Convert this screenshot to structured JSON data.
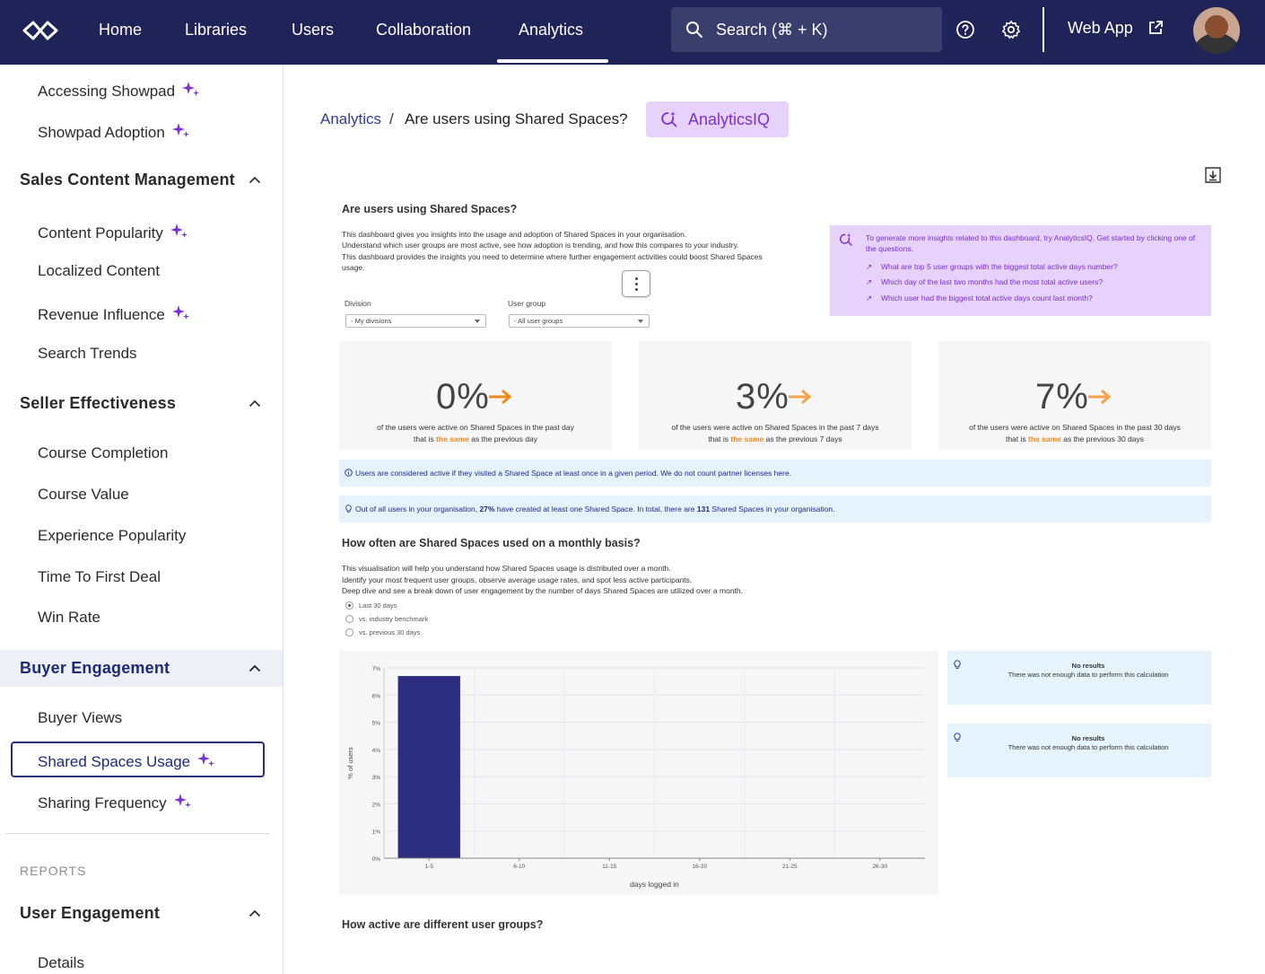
{
  "nav": {
    "items": [
      "Home",
      "Libraries",
      "Users",
      "Collaboration",
      "Analytics"
    ],
    "active": "Analytics",
    "search_placeholder": "Search (⌘ + K)",
    "web_app_label": "Web App",
    "icons": [
      "infinity-logo-icon",
      "search-icon",
      "help-icon",
      "gear-icon",
      "external-link-icon"
    ]
  },
  "sidebar": {
    "top_items": [
      {
        "label": "Accessing Showpad",
        "sparkle": true
      },
      {
        "label": "Showpad Adoption",
        "sparkle": true
      }
    ],
    "sections": [
      {
        "title": "Sales Content Management",
        "items": [
          {
            "label": "Content Popularity",
            "sparkle": true
          },
          {
            "label": "Localized Content",
            "sparkle": false
          },
          {
            "label": "Revenue Influence",
            "sparkle": true
          },
          {
            "label": "Search Trends",
            "sparkle": false
          }
        ]
      },
      {
        "title": "Seller Effectiveness",
        "items": [
          {
            "label": "Course Completion",
            "sparkle": false
          },
          {
            "label": "Course Value",
            "sparkle": false
          },
          {
            "label": "Experience Popularity",
            "sparkle": false
          },
          {
            "label": "Time To First Deal",
            "sparkle": false
          },
          {
            "label": "Win Rate",
            "sparkle": false
          }
        ]
      },
      {
        "title": "Buyer Engagement",
        "active": true,
        "items": [
          {
            "label": "Buyer Views",
            "sparkle": false
          },
          {
            "label": "Shared Spaces Usage",
            "sparkle": true,
            "selected": true
          },
          {
            "label": "Sharing Frequency",
            "sparkle": true
          }
        ]
      }
    ],
    "reports_heading": "REPORTS",
    "reports_sections": [
      {
        "title": "User Engagement",
        "items": [
          {
            "label": "Details",
            "sparkle": false
          }
        ]
      }
    ]
  },
  "breadcrumb": {
    "parent": "Analytics",
    "separator": "/",
    "current": "Are users using Shared Spaces?"
  },
  "analytics_iq_button": "AnalyticsIQ",
  "dashboard": {
    "title": "Are users using Shared Spaces?",
    "description": [
      "This dashboard gives you insights into the usage and adoption of Shared Spaces in your organisation.",
      "Understand which user groups are most active, see how adoption is trending, and how this compares to your industry.",
      "This dashboard provides the insights you need to determine where further engagement activities could boost Shared Spaces usage."
    ],
    "filters": [
      {
        "label": "Division",
        "value": "- My divisions"
      },
      {
        "label": "User group",
        "value": "- All user groups"
      }
    ],
    "iq_panel": {
      "intro": "To generate more insights related to this dashboard, try AnalyticsIQ. Get started by clicking one of the questions.",
      "questions": [
        "What are top 5 user groups with the biggest total active days number?",
        "Which day of the last two months had the most total active users?",
        "Which user had the biggest total active days count last month?"
      ]
    },
    "kpis": [
      {
        "value": "0%",
        "line1": "of the users were active on Shared Spaces in the past day",
        "pre": "that is ",
        "highlight": "the same",
        "post": " as the previous day"
      },
      {
        "value": "3%",
        "line1": "of the users were active on Shared Spaces in the past 7 days",
        "pre": "that is ",
        "highlight": "the same",
        "post": " as the previous 7 days"
      },
      {
        "value": "7%",
        "line1": "of the users were active on Shared Spaces in the past 30 days",
        "pre": "that is ",
        "highlight": "the same",
        "post": " as the previous 30 days"
      }
    ],
    "info_active": "Users are considered active if they visited a Shared Space at least once in a given period. We do not count partner licenses here.",
    "info_created": {
      "pre": "Out of all users in your organisation, ",
      "pct": "27%",
      "mid": " have created at least one Shared Space. In total, there are ",
      "count": "131",
      "post": " Shared Spaces in your organisation."
    },
    "monthly": {
      "title": "How often are Shared Spaces used on a monthly basis?",
      "description": [
        "This visualisation will help you understand how Shared Spaces usage is distributed over a month.",
        "Identify your most frequent user groups, observe average usage rates, and spot less active participants.",
        "Deep dive and see a break down of user engagement by the number of days Shared Spaces are utilized over a month."
      ],
      "options": [
        "Last 30 days",
        "vs. industry benchmark",
        "vs. previous 30 days"
      ],
      "selected_option": 0
    },
    "no_results": [
      {
        "title": "No results",
        "text": "There was not enough data to perform this calculation"
      },
      {
        "title": "No results",
        "text": "There was not enough data to perform this calculation"
      }
    ],
    "groups_title": "How active are different user groups?"
  },
  "chart_data": {
    "type": "bar",
    "categories": [
      "1-5",
      "6-10",
      "11-15",
      "16-20",
      "21-25",
      "26-30"
    ],
    "values": [
      6.7,
      0,
      0,
      0,
      0,
      0
    ],
    "xlabel": "days logged in",
    "ylabel": "% of users",
    "ylim": [
      0,
      7
    ],
    "yticks": [
      "0%",
      "1%",
      "2%",
      "3%",
      "4%",
      "5%",
      "6%",
      "7%"
    ],
    "grid": true,
    "colors": {
      "bar": "#2a2d80"
    }
  },
  "colors": {
    "nav_bg": "#1f2357",
    "accent_purple": "#7b2fd6",
    "highlight_orange": "#f28a1a",
    "info_bg": "#e5f3fc"
  }
}
